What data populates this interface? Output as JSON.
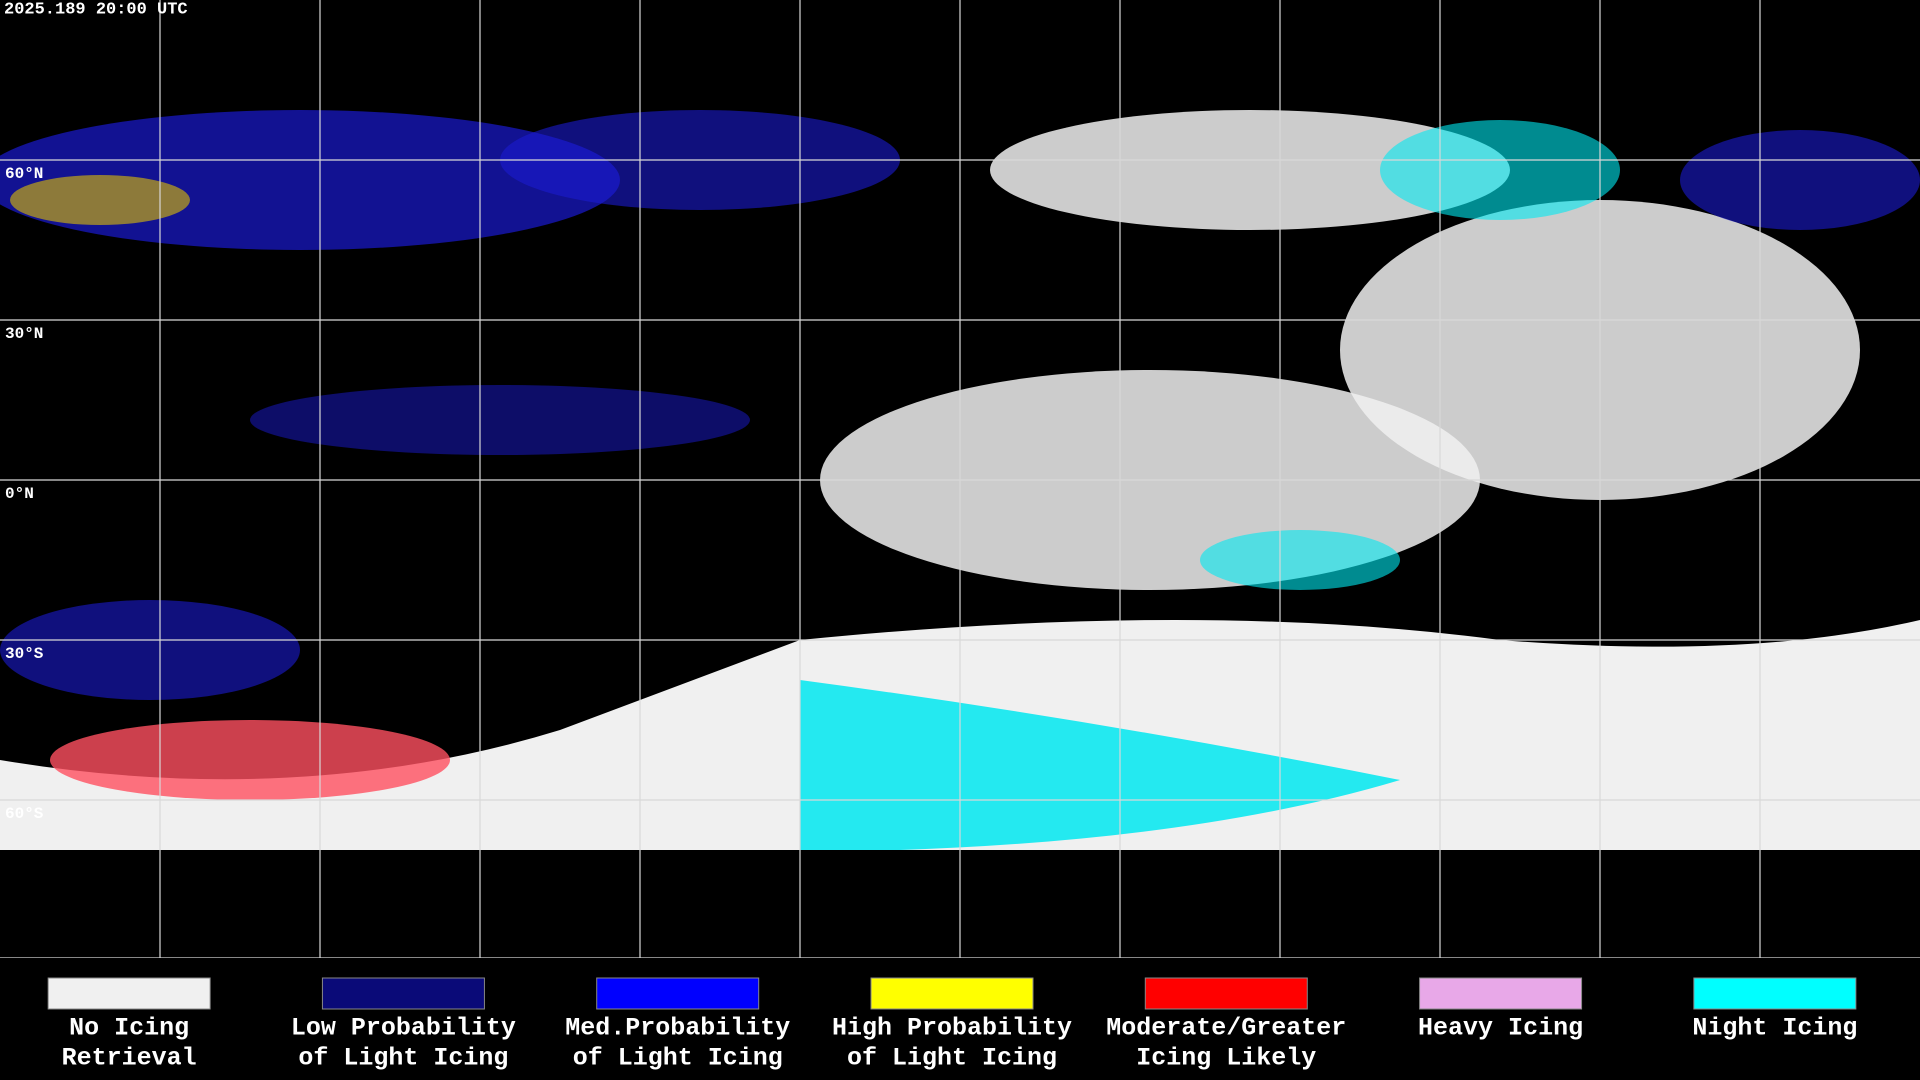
{
  "header": {
    "timestamp": "2025.189 20:00 UTC"
  },
  "map": {
    "latitude_labels": [
      "60°N",
      "30°N",
      "0°N",
      "30°S",
      "60°S"
    ]
  },
  "legend": {
    "items": [
      {
        "label": [
          "No Icing",
          "Retrieval"
        ],
        "color": "#f0f0f0"
      },
      {
        "label": [
          "Low Probability",
          "of Light Icing"
        ],
        "color": "#0a0a78"
      },
      {
        "label": [
          "Med.Probability",
          "of Light Icing"
        ],
        "color": "#0000ff"
      },
      {
        "label": [
          "High Probability",
          "of Light Icing"
        ],
        "color": "#ffff00"
      },
      {
        "label": [
          "Moderate/Greater",
          "Icing Likely"
        ],
        "color": "#ff0000"
      },
      {
        "label": [
          "Heavy Icing"
        ],
        "color": "#e8a8e8"
      },
      {
        "label": [
          "Night Icing"
        ],
        "color": "#00ffff"
      }
    ]
  }
}
